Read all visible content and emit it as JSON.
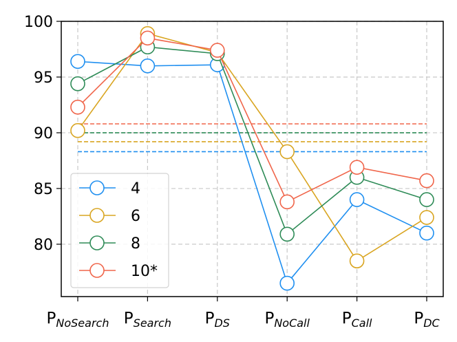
{
  "chart_data": {
    "type": "line",
    "categories": [
      {
        "base": "P",
        "sub": "NoSearch"
      },
      {
        "base": "P",
        "sub": "Search"
      },
      {
        "base": "P",
        "sub": "DS"
      },
      {
        "base": "P",
        "sub": "NoCall"
      },
      {
        "base": "P",
        "sub": "Call"
      },
      {
        "base": "P",
        "sub": "DC"
      }
    ],
    "ylim": [
      75.3,
      100
    ],
    "yticks": [
      "80",
      "85",
      "90",
      "95",
      "100"
    ],
    "grid": true,
    "legend_position": "lower-left",
    "series": [
      {
        "name": "4",
        "color": "#1f8ff0",
        "values": [
          96.4,
          96.0,
          96.1,
          76.5,
          84.0,
          81.0
        ],
        "reference": 88.3
      },
      {
        "name": "6",
        "color": "#d9a521",
        "values": [
          90.2,
          98.9,
          97.2,
          88.3,
          78.5,
          82.4
        ],
        "reference": 89.2
      },
      {
        "name": "8",
        "color": "#2e8b57",
        "values": [
          94.4,
          97.7,
          97.1,
          80.9,
          86.0,
          84.0
        ],
        "reference": 90.0
      },
      {
        "name": "10*",
        "color": "#f0654a",
        "values": [
          92.3,
          98.5,
          97.4,
          83.8,
          86.9,
          85.7
        ],
        "reference": 90.8
      }
    ]
  }
}
